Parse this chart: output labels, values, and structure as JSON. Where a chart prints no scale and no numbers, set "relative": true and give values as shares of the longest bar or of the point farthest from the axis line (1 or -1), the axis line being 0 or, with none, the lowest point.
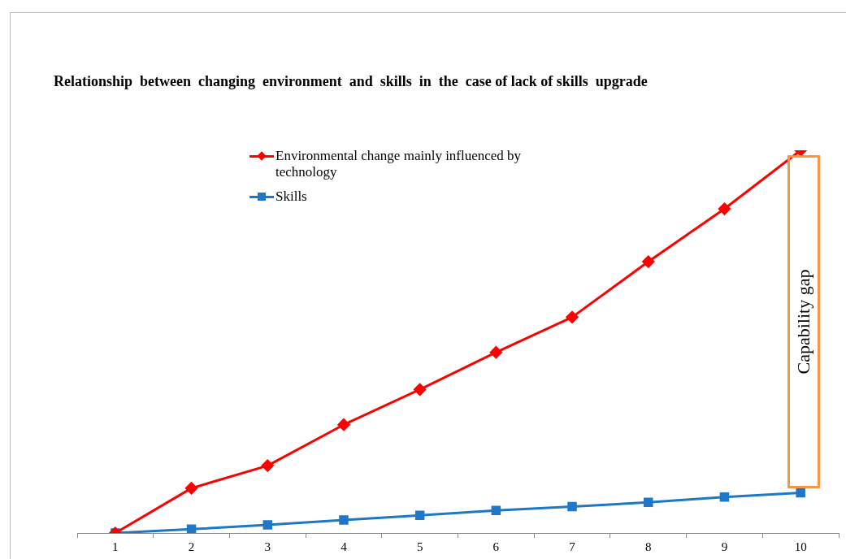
{
  "chart_data": {
    "type": "line",
    "title": "Relationship  between  changing  environment  and  skills  in  the  case of lack of skills  upgrade",
    "relative": true,
    "categories": [
      "1",
      "2",
      "3",
      "4",
      "5",
      "6",
      "7",
      "8",
      "9",
      "10"
    ],
    "series": [
      {
        "name": "Environmental change mainly influenced by technology",
        "color": "#ff0000",
        "marker": "diamond",
        "values": [
          0,
          0.117,
          0.176,
          0.283,
          0.375,
          0.472,
          0.564,
          0.709,
          0.847,
          1
        ]
      },
      {
        "name": "Skills",
        "color": "#1f77c8",
        "marker": "square",
        "values": [
          0,
          0.01,
          0.021,
          0.034,
          0.046,
          0.059,
          0.069,
          0.08,
          0.094,
          0.105
        ]
      }
    ],
    "annotations": [
      "Capability gap"
    ],
    "legend": "top",
    "grid": false
  }
}
